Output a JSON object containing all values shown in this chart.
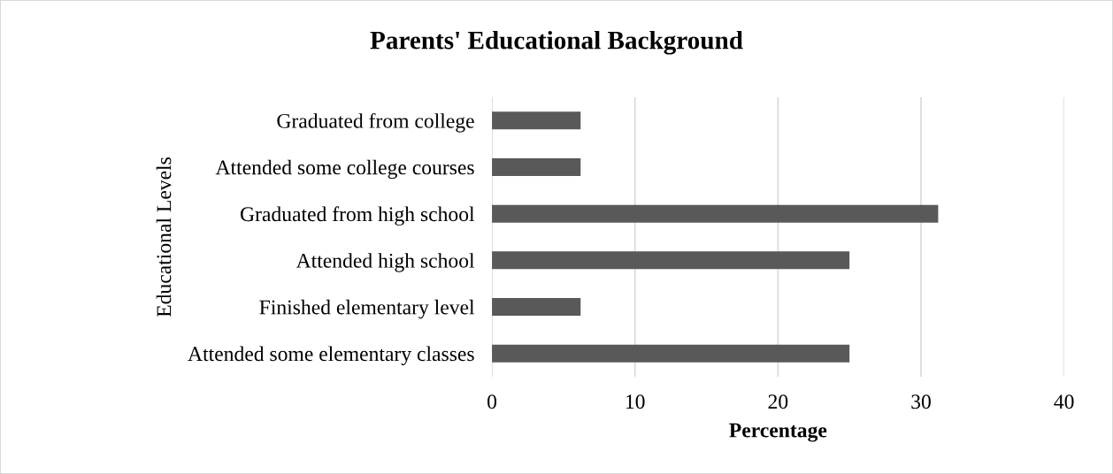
{
  "chart_data": {
    "type": "bar",
    "orientation": "horizontal",
    "title": "Parents' Educational Background",
    "xlabel": "Percentage",
    "ylabel": "Educational Levels",
    "categories": [
      "Graduated from college",
      "Attended some college courses",
      "Graduated from high school",
      "Attended high school",
      "Finished elementary level",
      "Attended some elementary classes"
    ],
    "values": [
      6.2,
      6.2,
      31.2,
      25,
      6.2,
      25
    ],
    "color": "#595959",
    "xlim": [
      0,
      40
    ],
    "xticks": [
      0,
      10,
      20,
      30,
      40
    ],
    "grid": "x",
    "legend": false
  }
}
